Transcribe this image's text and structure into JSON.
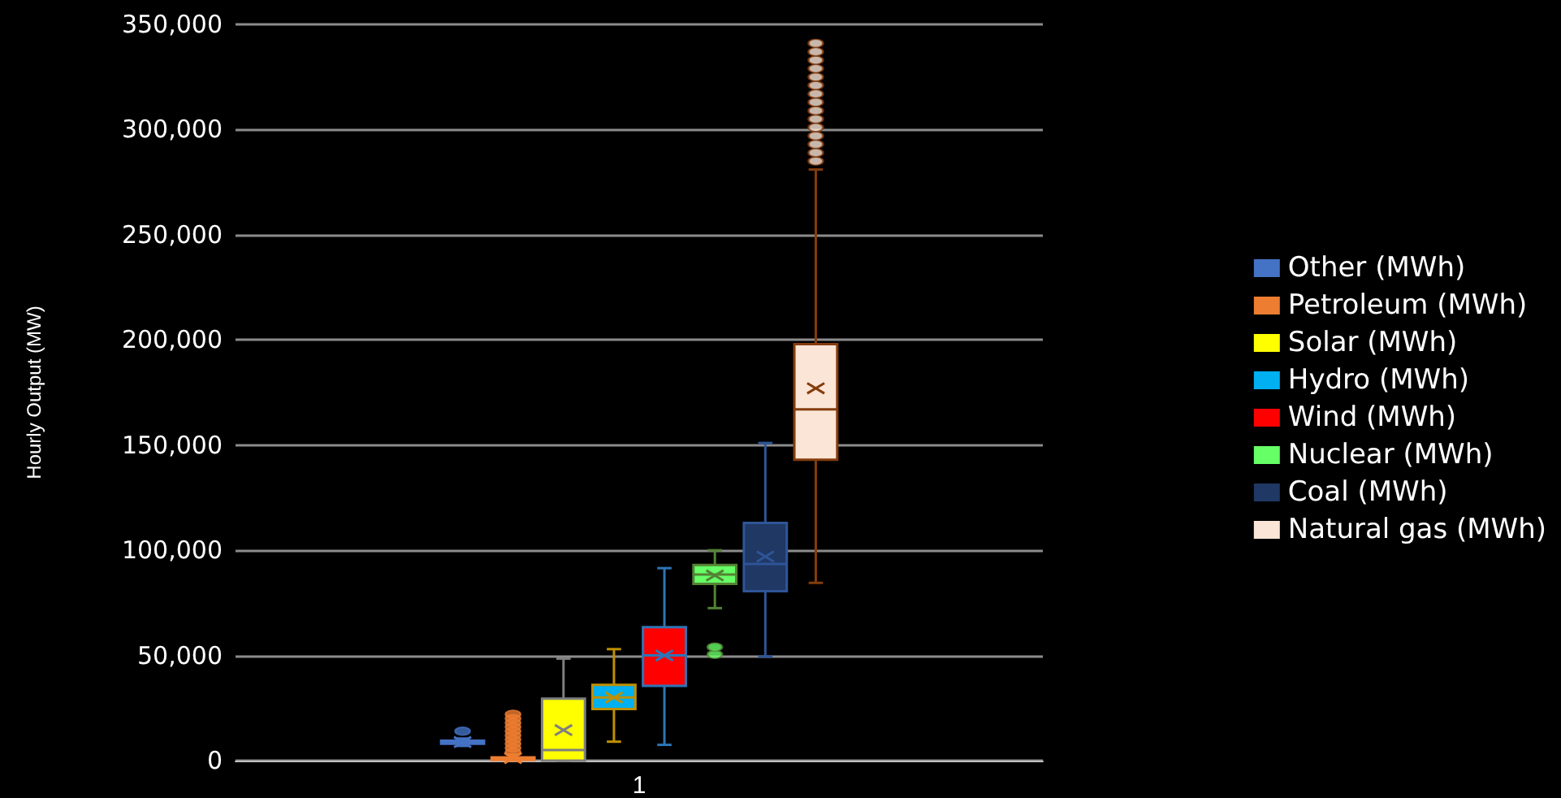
{
  "chart_data": {
    "type": "box",
    "ylabel": "Hourly Output (MW)",
    "categories": [
      "1"
    ],
    "ylim": [
      0,
      350000
    ],
    "yticks": [
      0,
      {
        "value": 50000,
        "label": "50,000"
      },
      {
        "value": 100000,
        "label": "100,000"
      },
      {
        "value": 150000,
        "label": "150,000"
      },
      {
        "value": 200000,
        "label": "200,000"
      },
      {
        "value": 250000,
        "label": "250,000"
      },
      {
        "value": 300000,
        "label": "300,000"
      },
      {
        "value": 350000,
        "label": "350,000"
      }
    ],
    "grid": "y",
    "legend": "right",
    "series": [
      {
        "name": "Other (MWh)",
        "color": "#4472c4",
        "boxes": [
          {
            "low": 7000,
            "q1": 8000,
            "median": 8700,
            "q3": 9500,
            "high": 10500,
            "mean": 8800,
            "outliers": [
              14000
            ]
          }
        ]
      },
      {
        "name": "Petroleum (MWh)",
        "color": "#ed7d31",
        "boxes": [
          {
            "low": 0,
            "q1": 300,
            "median": 800,
            "q3": 1500,
            "high": 3000,
            "mean": 1200,
            "outliers": [
              4000,
              6000,
              8000,
              10000,
              12000,
              14000,
              16000,
              18000,
              20000,
              22000
            ]
          }
        ]
      },
      {
        "name": "Solar (MWh)",
        "color": "#ffff00",
        "boxes": [
          {
            "low": 0,
            "q1": 0,
            "median": 5000,
            "q3": 29500,
            "high": 48500,
            "mean": 14500
          }
        ]
      },
      {
        "name": "Hydro (MWh)",
        "color": "#00b0f0",
        "boxes": [
          {
            "low": 9000,
            "q1": 24500,
            "median": 30000,
            "q3": 36000,
            "high": 53000,
            "mean": 30000
          }
        ]
      },
      {
        "name": "Wind (MWh)",
        "color": "#ff0000",
        "boxes": [
          {
            "low": 7500,
            "q1": 35500,
            "median": 50000,
            "q3": 63500,
            "high": 91500,
            "mean": 50000
          }
        ]
      },
      {
        "name": "Nuclear (MWh)",
        "color": "#66ff66",
        "boxes": [
          {
            "low": 72500,
            "q1": 84000,
            "median": 88500,
            "q3": 93000,
            "high": 100000,
            "mean": 88000,
            "outliers": [
              50500,
              54000
            ]
          }
        ]
      },
      {
        "name": "Coal (MWh)",
        "color": "#1f3864",
        "boxes": [
          {
            "low": 49500,
            "q1": 80500,
            "median": 93500,
            "q3": 113000,
            "high": 151000,
            "mean": 97000
          }
        ]
      },
      {
        "name": "Natural gas (MWh)",
        "color": "#fbe5d6",
        "boxes": [
          {
            "low": 84500,
            "q1": 143000,
            "median": 167000,
            "q3": 198000,
            "high": 281000,
            "mean": 177000,
            "outliers": [
              285000,
              289000,
              293000,
              297000,
              301000,
              305000,
              309000,
              313000,
              317000,
              321000,
              325000,
              329000,
              333000,
              337000,
              341000
            ]
          }
        ]
      }
    ]
  }
}
